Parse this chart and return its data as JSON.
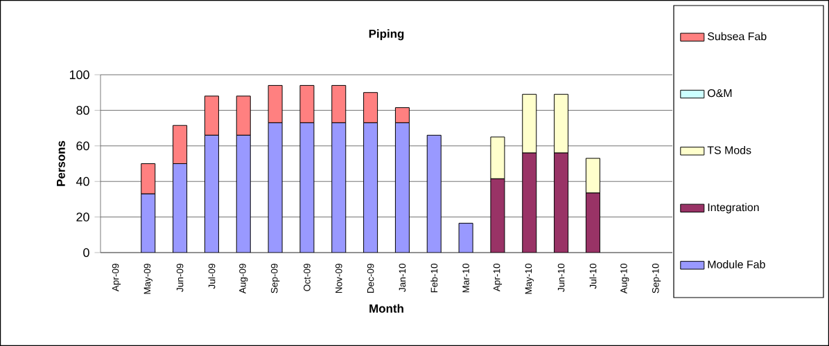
{
  "chart_data": {
    "type": "bar",
    "title": "Piping",
    "xlabel": "Month",
    "ylabel": "Persons",
    "stacked": true,
    "categories": [
      "Apr-09",
      "May-09",
      "Jun-09",
      "Jul-09",
      "Aug-09",
      "Sep-09",
      "Oct-09",
      "Nov-09",
      "Dec-09",
      "Jan-10",
      "Feb-10",
      "Mar-10",
      "Apr-10",
      "May-10",
      "Jun-10",
      "Jul-10",
      "Aug-10",
      "Sep-10"
    ],
    "series": [
      {
        "name": "Module Fab",
        "color": "#9999ff",
        "values": [
          null,
          33,
          50,
          66,
          66,
          73,
          73,
          73,
          73,
          73,
          66,
          16.5,
          null,
          null,
          null,
          null,
          null,
          null
        ]
      },
      {
        "name": "Integration",
        "color": "#993366",
        "values": [
          null,
          null,
          null,
          null,
          null,
          null,
          null,
          null,
          null,
          null,
          null,
          null,
          41.5,
          56,
          56,
          33.5,
          null,
          null
        ]
      },
      {
        "name": "TS Mods",
        "color": "#ffffcc",
        "values": [
          null,
          null,
          null,
          null,
          null,
          null,
          null,
          null,
          null,
          null,
          null,
          null,
          23.5,
          33,
          33,
          19.5,
          null,
          null
        ]
      },
      {
        "name": "O&M",
        "color": "#ccffff",
        "values": [
          null,
          null,
          null,
          null,
          null,
          null,
          null,
          null,
          null,
          null,
          null,
          null,
          null,
          null,
          null,
          null,
          null,
          null
        ]
      },
      {
        "name": "Subsea Fab",
        "color": "#ff8080",
        "values": [
          null,
          17,
          21.5,
          22,
          22,
          21,
          21,
          21,
          17,
          8.5,
          null,
          null,
          null,
          null,
          null,
          null,
          null,
          null
        ]
      }
    ],
    "ylim": [
      0,
      100
    ],
    "yticks": [
      0,
      20,
      40,
      60,
      80,
      100
    ],
    "grid": "y",
    "legend": "right"
  }
}
